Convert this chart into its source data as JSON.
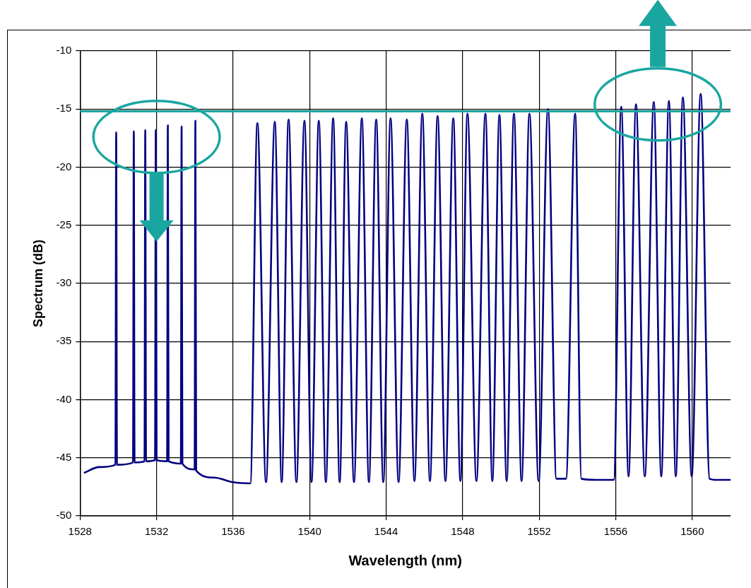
{
  "chart_data": {
    "type": "line",
    "xlabel": "Wavelength (nm)",
    "ylabel": "Spectrum (dB)",
    "xlim": [
      1528,
      1562
    ],
    "xticks": [
      1528,
      1532,
      1536,
      1540,
      1544,
      1548,
      1552,
      1556,
      1560
    ],
    "ylim": [
      -50,
      -10
    ],
    "yticks": [
      -50,
      -45,
      -40,
      -35,
      -30,
      -25,
      -20,
      -15,
      -10
    ],
    "grid": true,
    "legend": false,
    "marker": "none",
    "line_style": "solid",
    "ref_lines": [
      {
        "axis": "y",
        "value": -15.2,
        "color": "#1aa6a0"
      }
    ],
    "series": [
      {
        "color": "#000080",
        "x": [
          1528.2,
          1529,
          1529.85,
          1529.89,
          1529.93,
          1530.77,
          1530.81,
          1530.85,
          1531.37,
          1531.41,
          1531.45,
          1531.92,
          1531.96,
          1532.0,
          1532.55,
          1532.59,
          1532.63,
          1533.27,
          1533.31,
          1533.35,
          1533.99,
          1534.03,
          1534.07,
          1535,
          1536,
          1536.9,
          1537.27,
          1537.72,
          1538.18,
          1538.54,
          1538.9,
          1539.31,
          1539.73,
          1540.1,
          1540.48,
          1540.85,
          1541.23,
          1541.57,
          1541.91,
          1542.32,
          1542.73,
          1543.1,
          1543.48,
          1543.85,
          1544.23,
          1544.65,
          1545.08,
          1545.48,
          1545.89,
          1546.29,
          1546.69,
          1547.1,
          1547.51,
          1547.88,
          1548.25,
          1548.72,
          1549.19,
          1549.55,
          1549.92,
          1550.3,
          1550.68,
          1551.08,
          1551.49,
          1551.97,
          1552.46,
          1552.9,
          1553.4,
          1553.88,
          1554.2,
          1555,
          1555.9,
          1556.29,
          1556.67,
          1557.06,
          1557.52,
          1557.99,
          1558.38,
          1558.78,
          1559.14,
          1559.51,
          1559.97,
          1560.44,
          1560.9,
          1561.3,
          1562
        ],
        "values": [
          -46.3,
          -45.8,
          -45.6,
          -17.0,
          -45.6,
          -45.4,
          -16.9,
          -45.4,
          -45.3,
          -16.8,
          -45.3,
          -45.2,
          -16.8,
          -45.2,
          -45.3,
          -16.4,
          -45.3,
          -45.5,
          -16.5,
          -45.5,
          -46.0,
          -16.0,
          -46.1,
          -46.7,
          -47.1,
          -47.2,
          -16.2,
          -47.1,
          -16.1,
          -47.1,
          -15.9,
          -47.1,
          -16.0,
          -47.1,
          -16.0,
          -47.1,
          -15.8,
          -47.1,
          -16.1,
          -47.1,
          -15.8,
          -47.1,
          -15.9,
          -47.1,
          -15.8,
          -47.1,
          -15.9,
          -47.0,
          -15.4,
          -47.0,
          -15.6,
          -47.0,
          -15.8,
          -47.0,
          -15.4,
          -47.0,
          -15.4,
          -47.0,
          -15.5,
          -47.0,
          -15.4,
          -47.0,
          -15.4,
          -47.0,
          -15.0,
          -46.8,
          -46.8,
          -15.4,
          -46.8,
          -46.9,
          -46.9,
          -14.8,
          -46.6,
          -14.6,
          -46.6,
          -14.4,
          -46.6,
          -14.3,
          -46.6,
          -14.0,
          -46.6,
          -13.7,
          -46.8,
          -46.9,
          -46.9
        ]
      }
    ]
  }
}
